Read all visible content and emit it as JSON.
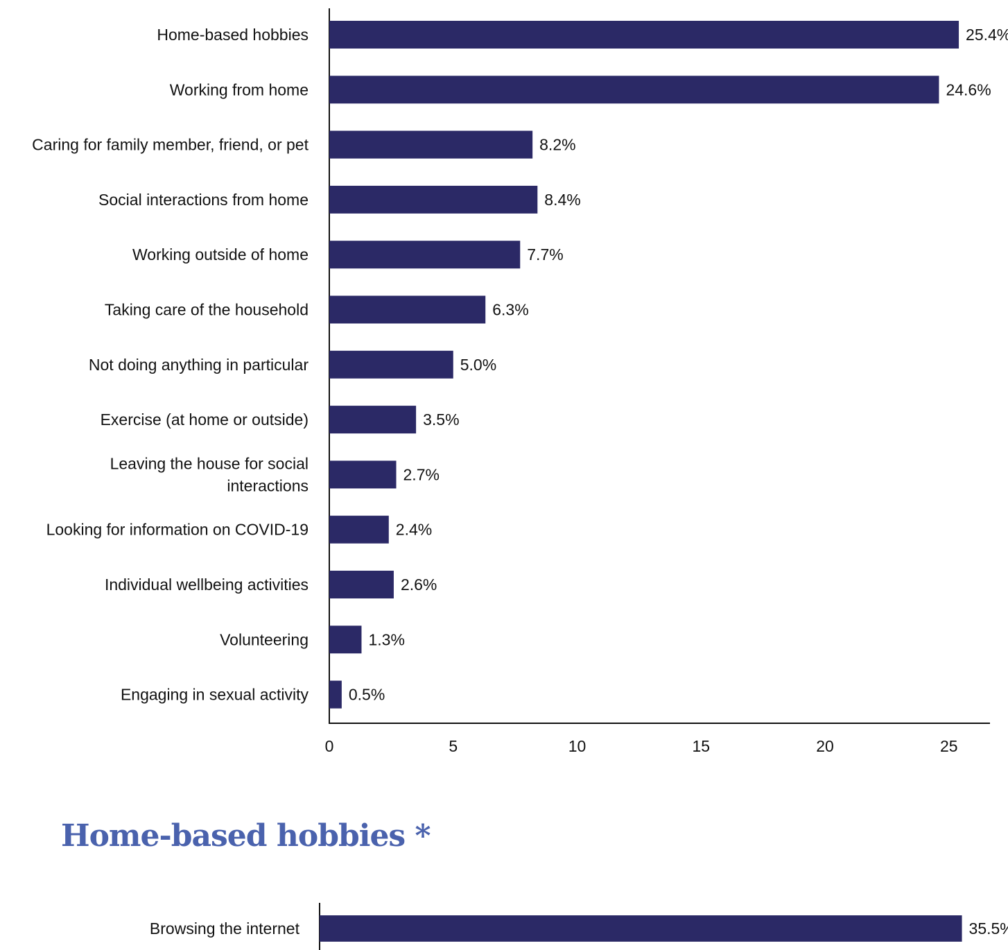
{
  "chart_data": [
    {
      "type": "bar",
      "orientation": "horizontal",
      "categories": [
        "Home-based hobbies",
        "Working from home",
        "Caring for family member, friend, or pet",
        "Social interactions from home",
        "Working outside of home",
        "Taking care of the household",
        "Not doing anything in particular",
        "Exercise (at home or outside)",
        "Leaving the house for social interactions",
        "Looking for information on COVID-19",
        "Individual wellbeing activities",
        "Volunteering",
        "Engaging in sexual activity"
      ],
      "values": [
        25.4,
        24.6,
        8.2,
        8.4,
        7.7,
        6.3,
        5.0,
        3.5,
        2.7,
        2.4,
        2.6,
        1.3,
        0.5
      ],
      "value_labels": [
        "25.4%",
        "24.6%",
        "8.2%",
        "8.4%",
        "7.7%",
        "6.3%",
        "5.0%",
        "3.5%",
        "2.7%",
        "2.4%",
        "2.6%",
        "1.3%",
        "0.5%"
      ],
      "xticks": [
        "0",
        "5",
        "10",
        "15",
        "20",
        "25"
      ],
      "xlim": [
        0,
        26.6
      ],
      "grid": false,
      "bar_color": "#2b2966"
    },
    {
      "type": "bar",
      "orientation": "horizontal",
      "title": "Home-based hobbies *",
      "categories": [
        "Browsing the internet"
      ],
      "values": [
        35.5
      ],
      "value_labels": [
        "35.5%"
      ],
      "grid": false,
      "bar_color": "#2b2966"
    }
  ],
  "colors": {
    "bar": "#2b2966",
    "title": "#4a62ad",
    "axis": "#111111"
  }
}
